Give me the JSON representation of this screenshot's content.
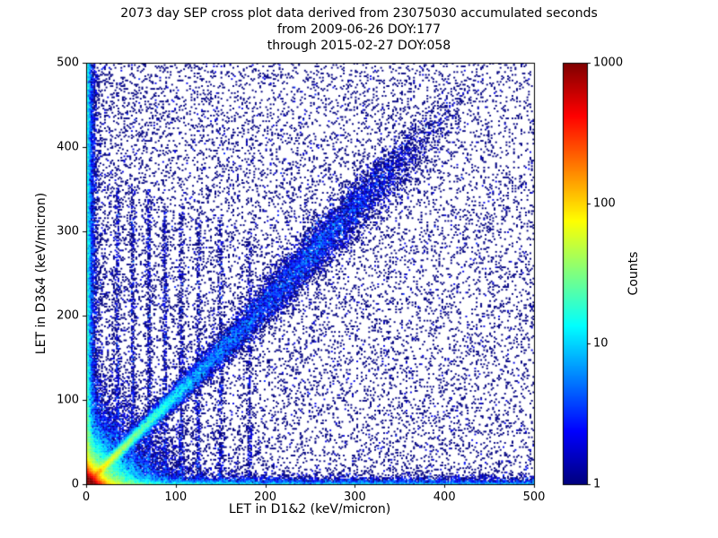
{
  "chart_data": {
    "type": "heatmap",
    "title_lines": [
      "2073 day SEP cross plot data derived from 23075030 accumulated seconds",
      "from 2009-06-26 DOY:177",
      "through 2015-02-27 DOY:058"
    ],
    "xlabel": "LET in D1&2 (keV/micron)",
    "ylabel": "LET in D3&4 (keV/micron)",
    "xlim": [
      0,
      500
    ],
    "ylim": [
      0,
      500
    ],
    "xticks": [
      0,
      100,
      200,
      300,
      400,
      500
    ],
    "yticks": [
      0,
      100,
      200,
      300,
      400,
      500
    ],
    "grid": false,
    "colorbar": {
      "label": "Counts",
      "scale": "log",
      "range": [
        1,
        1000
      ],
      "ticks": [
        1,
        10,
        100,
        1000
      ],
      "colormap": "jet",
      "low_color": "#00007f",
      "high_color": "#7f0000"
    },
    "background_color": "#ffffff",
    "axis_color": "#000000",
    "seed": 20730,
    "bins": 300,
    "density_features": [
      {
        "name": "origin-hotspot",
        "type": "exp2d",
        "n": 60000,
        "sx": 5,
        "sy": 5
      },
      {
        "name": "origin-halo",
        "type": "exp2d",
        "n": 30000,
        "sx": 22,
        "sy": 22
      },
      {
        "name": "main-diagonal-ridge",
        "type": "ridge",
        "n": 20000,
        "scale": 90,
        "xmax": 420,
        "slope": 1.05,
        "sigma0": 2,
        "sigmaGrow": 0.05
      },
      {
        "name": "diagonal-blob",
        "type": "blob",
        "n": 5000,
        "cx": 265,
        "cy": 292,
        "sx": 58,
        "sy": 15,
        "slope": 1.1
      },
      {
        "name": "left-edge-column",
        "type": "column",
        "n": 16000,
        "sx": 3,
        "ymax": 500,
        "pow": 1.4
      },
      {
        "name": "bottom-edge-row",
        "type": "row",
        "n": 8000,
        "sy": 3,
        "xmax": 500,
        "pow": 1.6
      },
      {
        "name": "background-scatter",
        "type": "uniform",
        "n": 14000,
        "xmax": 500,
        "ymax": 500,
        "powx": 1.15,
        "powy": 1.05
      },
      {
        "name": "striation-1",
        "type": "vline",
        "n": 500,
        "x": 35,
        "sx": 1.3,
        "ymax": 350,
        "pow": 1.3
      },
      {
        "name": "striation-2",
        "type": "vline",
        "n": 500,
        "x": 52,
        "sx": 1.3,
        "ymax": 350,
        "pow": 1.3
      },
      {
        "name": "striation-3",
        "type": "vline",
        "n": 500,
        "x": 70,
        "sx": 1.3,
        "ymax": 350,
        "pow": 1.3
      },
      {
        "name": "striation-4",
        "type": "vline",
        "n": 450,
        "x": 88,
        "sx": 1.3,
        "ymax": 330,
        "pow": 1.3
      },
      {
        "name": "striation-5",
        "type": "vline",
        "n": 450,
        "x": 106,
        "sx": 1.4,
        "ymax": 330,
        "pow": 1.3
      },
      {
        "name": "striation-6",
        "type": "vline",
        "n": 400,
        "x": 125,
        "sx": 1.4,
        "ymax": 320,
        "pow": 1.3
      },
      {
        "name": "striation-7",
        "type": "vline",
        "n": 400,
        "x": 150,
        "sx": 1.5,
        "ymax": 320,
        "pow": 1.3
      },
      {
        "name": "striation-8",
        "type": "vline",
        "n": 350,
        "x": 182,
        "sx": 1.5,
        "ymax": 300,
        "pow": 1.3
      }
    ]
  }
}
